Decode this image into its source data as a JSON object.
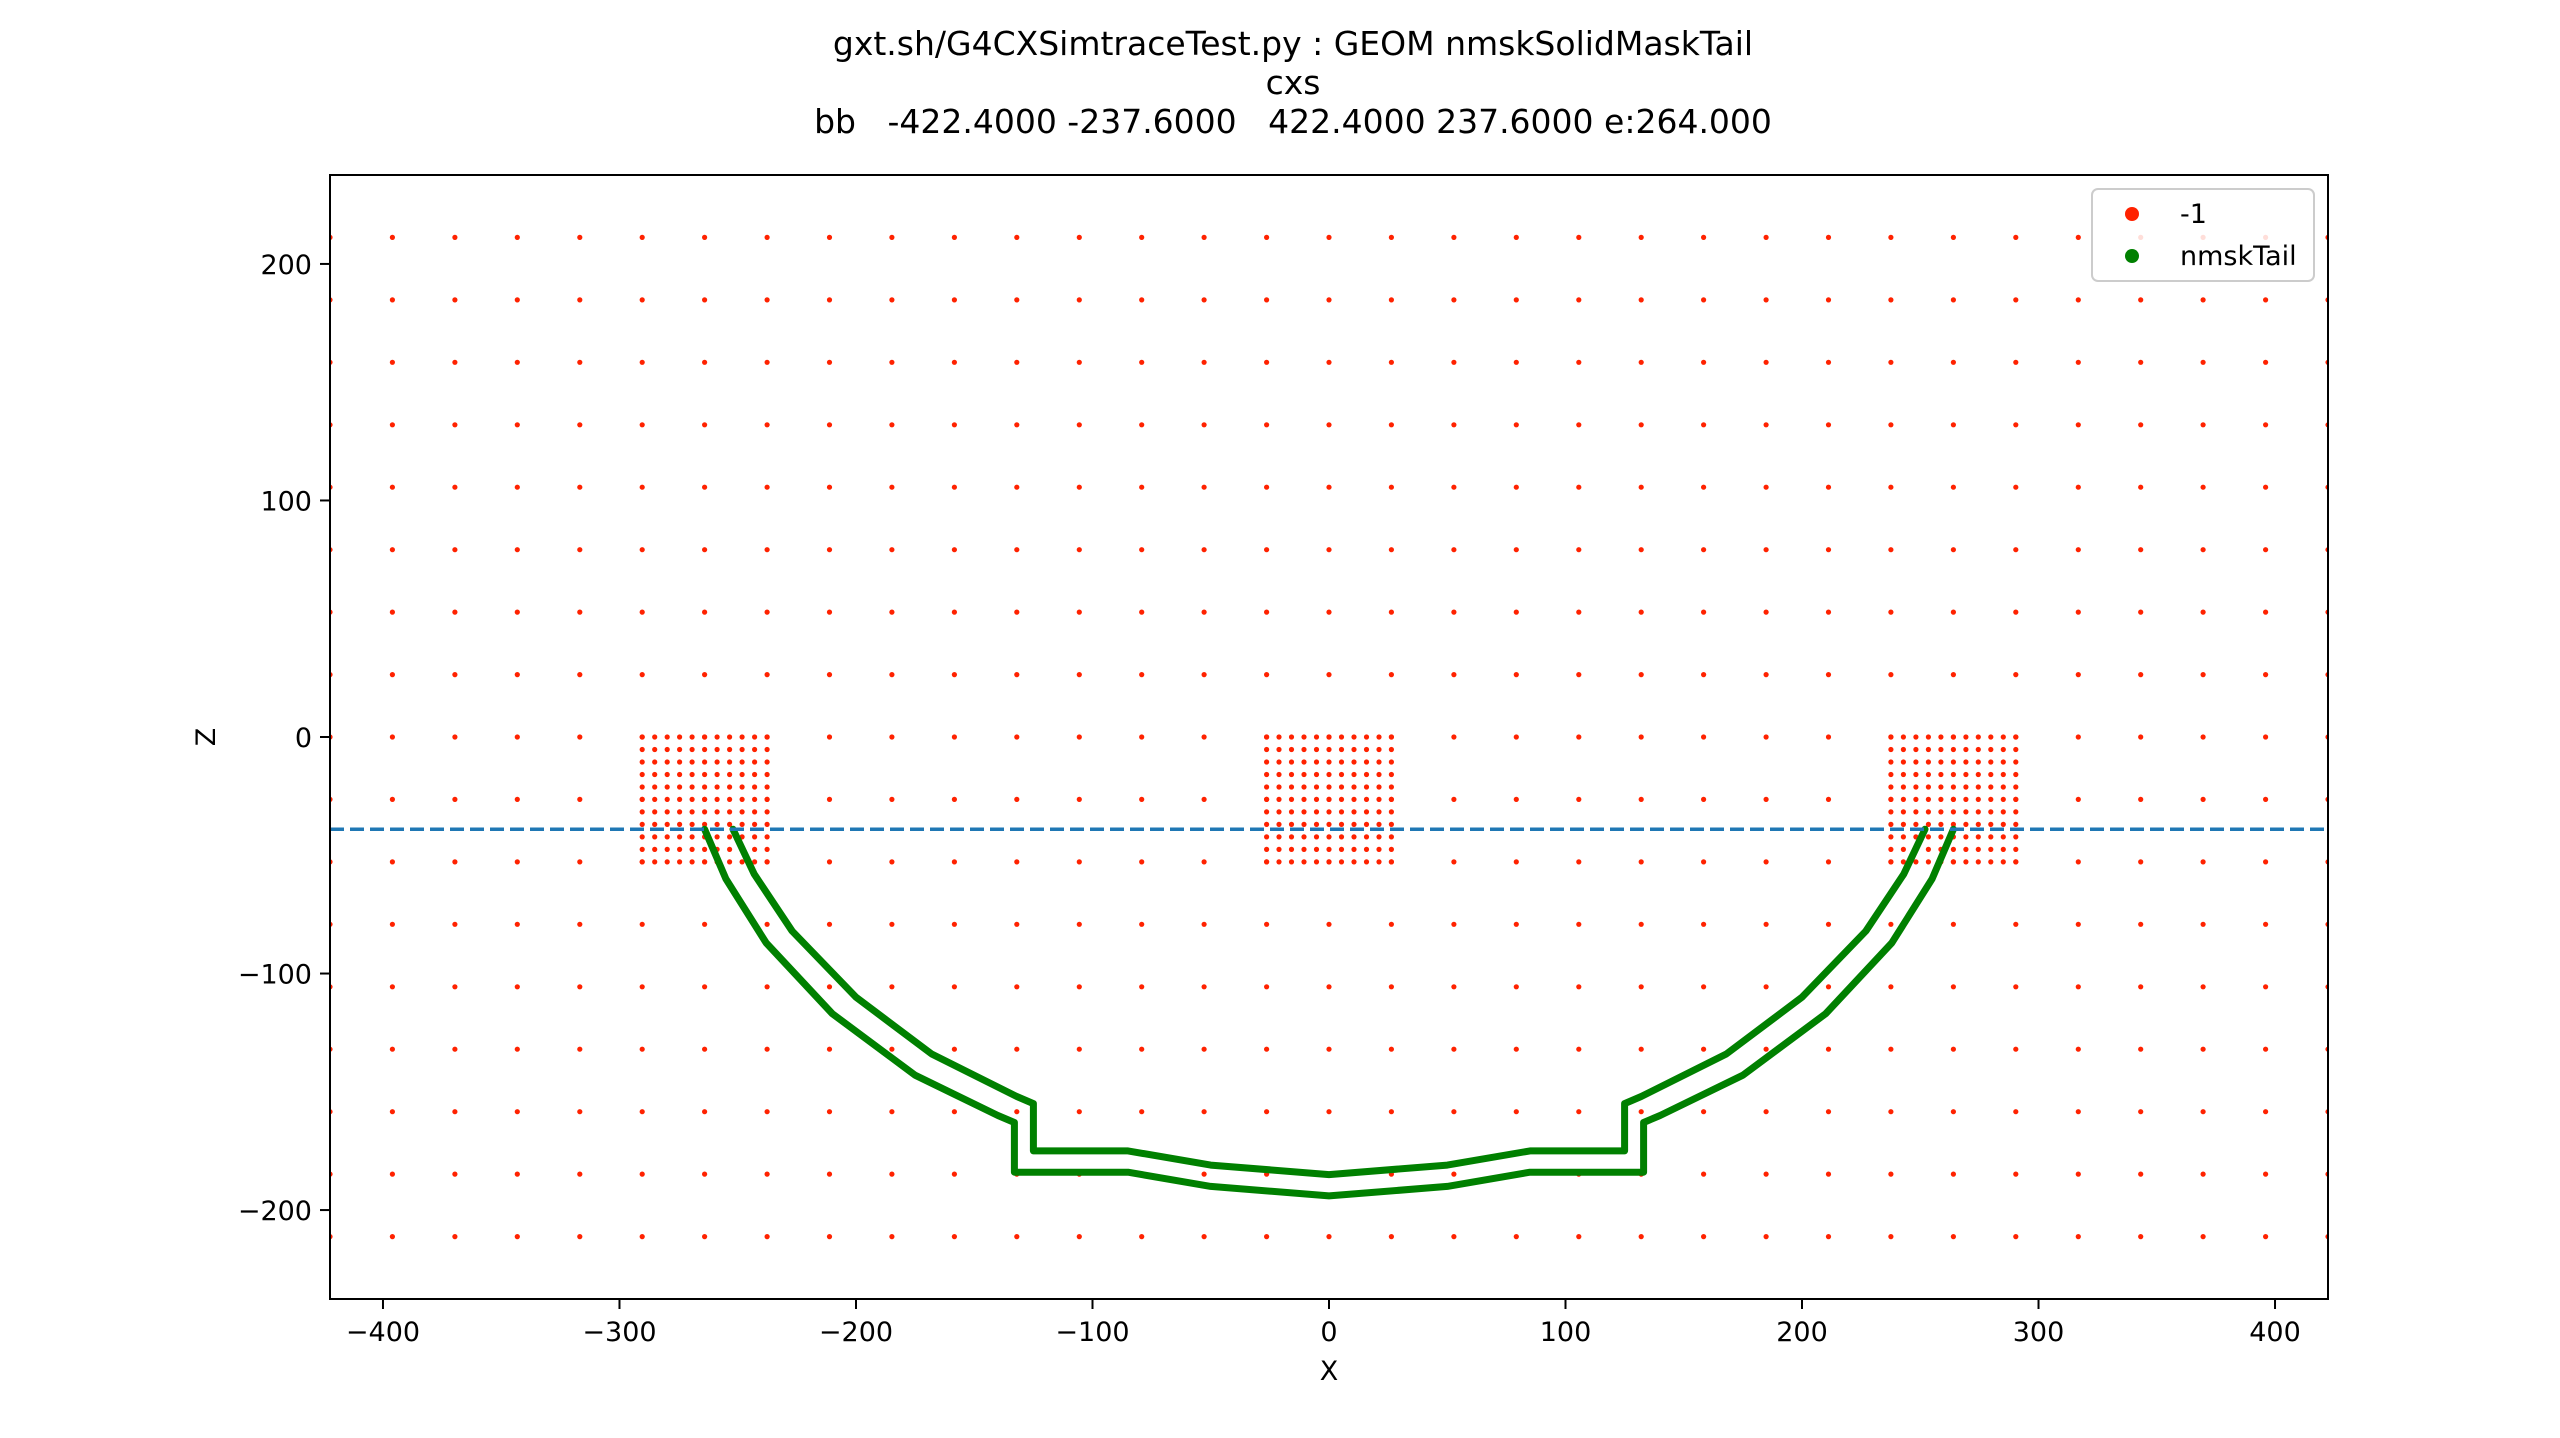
{
  "chart_data": {
    "type": "scatter",
    "title_lines": [
      "gxt.sh/G4CXSimtraceTest.py : GEOM nmskSolidMaskTail",
      "cxs",
      "bb   -422.4000 -237.6000   422.4000 237.6000 e:264.000"
    ],
    "xlabel": "X",
    "ylabel": "Z",
    "xlim": [
      -422.4,
      422.4
    ],
    "ylim": [
      -237.6,
      237.6
    ],
    "xticks": [
      -400,
      -300,
      -200,
      -100,
      0,
      100,
      200,
      300,
      400
    ],
    "xtick_labels": [
      "−400",
      "−300",
      "−200",
      "−100",
      "0",
      "100",
      "200",
      "300",
      "400"
    ],
    "yticks": [
      -200,
      -100,
      0,
      100,
      200
    ],
    "ytick_labels": [
      "−200",
      "−100",
      "0",
      "100",
      "200"
    ],
    "grid": false,
    "legend_position": "upper right",
    "series": [
      {
        "name": "-1",
        "color": "#ff2200",
        "marker": "dot",
        "coarse_grid": {
          "x_start": -422.4,
          "x_step": 26.4,
          "x_count": 33,
          "z_start": -211.2,
          "z_step": 26.4,
          "z_count": 17
        },
        "fine_patches": [
          {
            "x_start": -290.4,
            "x_end": -237.6,
            "z_start": -52.8,
            "z_end": 0,
            "step": 5.28
          },
          {
            "x_start": -26.4,
            "x_end": 26.4,
            "z_start": -52.8,
            "z_end": 0,
            "step": 5.28
          },
          {
            "x_start": 237.6,
            "x_end": 290.4,
            "z_start": -52.8,
            "z_end": 0,
            "step": 5.28
          }
        ]
      },
      {
        "name": "nmskTail",
        "color": "#008000",
        "marker": "dot",
        "outer_profile": [
          [
            -264,
            -39
          ],
          [
            -255,
            -60
          ],
          [
            -238,
            -87
          ],
          [
            -210,
            -117
          ],
          [
            -175,
            -143
          ],
          [
            -140,
            -160
          ],
          [
            -133,
            -163
          ],
          [
            -133,
            -184
          ],
          [
            -85,
            -184
          ],
          [
            -50,
            -190
          ],
          [
            0,
            -194
          ],
          [
            50,
            -190
          ],
          [
            85,
            -184
          ],
          [
            133,
            -184
          ],
          [
            133,
            -163
          ],
          [
            140,
            -160
          ],
          [
            175,
            -143
          ],
          [
            210,
            -117
          ],
          [
            238,
            -87
          ],
          [
            255,
            -60
          ],
          [
            264,
            -39
          ]
        ],
        "inner_profile": [
          [
            -252,
            -39
          ],
          [
            -243,
            -58
          ],
          [
            -227,
            -82
          ],
          [
            -200,
            -110
          ],
          [
            -168,
            -134
          ],
          [
            -132,
            -152
          ],
          [
            -125,
            -155
          ],
          [
            -125,
            -175
          ],
          [
            -85,
            -175
          ],
          [
            -50,
            -181
          ],
          [
            0,
            -185
          ],
          [
            50,
            -181
          ],
          [
            85,
            -175
          ],
          [
            125,
            -175
          ],
          [
            125,
            -155
          ],
          [
            132,
            -152
          ],
          [
            168,
            -134
          ],
          [
            200,
            -110
          ],
          [
            227,
            -82
          ],
          [
            243,
            -58
          ],
          [
            252,
            -39
          ]
        ]
      }
    ],
    "hline": {
      "z": -39,
      "color": "#1f77b4",
      "style": "dashed"
    }
  }
}
